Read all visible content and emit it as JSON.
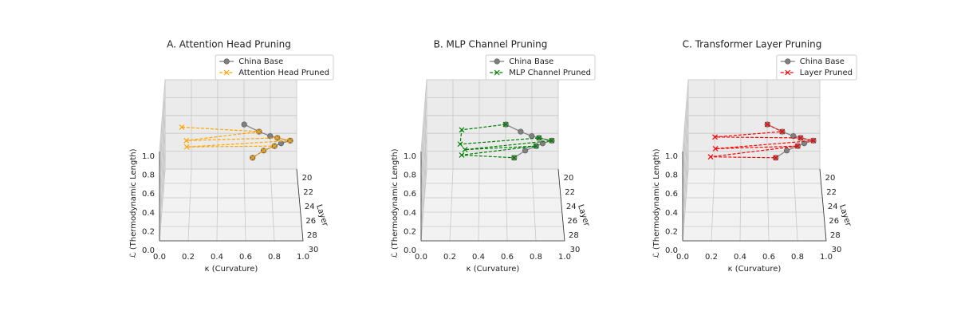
{
  "chart_data": [
    {
      "type": "line3d",
      "title": "A. Attention Head Pruning",
      "xlabel": "κ (Curvature)",
      "ylabel": "Layer",
      "zlabel": "ℒ (Thermodynamic Length)",
      "xlim": [
        0,
        1
      ],
      "ylim": [
        20,
        30
      ],
      "zlim": [
        0,
        1
      ],
      "xticks": [
        {
          "value": 0,
          "label": "0.0"
        },
        0.2,
        0.4,
        0.6,
        0.8,
        {
          "value": 1,
          "label": "1.0"
        }
      ],
      "yticks": [
        20,
        22,
        24,
        26,
        28,
        30
      ],
      "zticks": [
        {
          "value": 0,
          "label": "0.0"
        },
        0.2,
        0.4,
        0.6,
        0.8,
        {
          "value": 1,
          "label": "1.0"
        }
      ],
      "series": [
        {
          "name": "China Base",
          "color": "gray",
          "marker": "o",
          "linestyle": "solid",
          "x": [
            0.6,
            0.71,
            0.79,
            0.84,
            0.93,
            0.86,
            0.81,
            0.73,
            0.65
          ],
          "y": [
            21,
            22,
            23,
            24,
            25,
            26,
            27,
            28,
            29
          ],
          "z": [
            0.58,
            0.58,
            0.61,
            0.67,
            0.72,
            0.77,
            0.82,
            0.85,
            0.85
          ]
        },
        {
          "name": "Attention Head Pruned",
          "color": "orange",
          "marker": "x",
          "linestyle": "dashed",
          "x": [
            0.13,
            0.71,
            0.17,
            0.84,
            0.93,
            0.18,
            0.81,
            0.73,
            0.65
          ],
          "y": [
            21,
            22,
            23,
            24,
            25,
            26,
            27,
            28,
            29
          ],
          "z": [
            0.55,
            0.58,
            0.56,
            0.67,
            0.72,
            0.73,
            0.82,
            0.85,
            0.85
          ]
        }
      ]
    },
    {
      "type": "line3d",
      "title": "B. MLP Channel Pruning",
      "xlabel": "κ (Curvature)",
      "ylabel": "Layer",
      "zlabel": "ℒ (Thermodynamic Length)",
      "xlim": [
        0,
        1
      ],
      "ylim": [
        20,
        30
      ],
      "zlim": [
        0,
        1
      ],
      "xticks": [
        {
          "value": 0,
          "label": "0.0"
        },
        0.2,
        0.4,
        0.6,
        0.8,
        {
          "value": 1,
          "label": "1.0"
        }
      ],
      "yticks": [
        20,
        22,
        24,
        26,
        28,
        30
      ],
      "zticks": [
        {
          "value": 0,
          "label": "0.0"
        },
        0.2,
        0.4,
        0.6,
        0.8,
        {
          "value": 1,
          "label": "1.0"
        }
      ],
      "series": [
        {
          "name": "China Base",
          "color": "gray",
          "marker": "o",
          "linestyle": "solid",
          "x": [
            0.6,
            0.71,
            0.79,
            0.84,
            0.93,
            0.86,
            0.81,
            0.73,
            0.65
          ],
          "y": [
            21,
            22,
            23,
            24,
            25,
            26,
            27,
            28,
            29
          ],
          "z": [
            0.58,
            0.58,
            0.61,
            0.67,
            0.72,
            0.77,
            0.82,
            0.85,
            0.85
          ]
        },
        {
          "name": "MLP Channel Pruned",
          "color": "green",
          "marker": "x",
          "linestyle": "dashed",
          "x": [
            0.6,
            0.27,
            0.26,
            0.84,
            0.93,
            0.3,
            0.81,
            0.28,
            0.65
          ],
          "y": [
            21,
            22,
            23,
            24,
            25,
            26,
            27,
            28,
            29
          ],
          "z": [
            0.58,
            0.6,
            0.52,
            0.67,
            0.72,
            0.7,
            0.82,
            0.8,
            0.85
          ]
        }
      ]
    },
    {
      "type": "line3d",
      "title": "C. Transformer Layer Pruning",
      "xlabel": "κ (Curvature)",
      "ylabel": "Layer",
      "zlabel": "ℒ (Thermodynamic Length)",
      "xlim": [
        0,
        1
      ],
      "ylim": [
        20,
        30
      ],
      "zlim": [
        0,
        1
      ],
      "xticks": [
        {
          "value": 0,
          "label": "0.0"
        },
        0.2,
        0.4,
        0.6,
        0.8,
        {
          "value": 1,
          "label": "1.0"
        }
      ],
      "yticks": [
        20,
        22,
        24,
        26,
        28,
        30
      ],
      "zticks": [
        {
          "value": 0,
          "label": "0.0"
        },
        0.2,
        0.4,
        0.6,
        0.8,
        {
          "value": 1,
          "label": "1.0"
        }
      ],
      "series": [
        {
          "name": "China Base",
          "color": "gray",
          "marker": "o",
          "linestyle": "solid",
          "x": [
            0.6,
            0.71,
            0.79,
            0.84,
            0.93,
            0.86,
            0.81,
            0.73,
            0.65
          ],
          "y": [
            21,
            22,
            23,
            24,
            25,
            26,
            27,
            28,
            29
          ],
          "z": [
            0.58,
            0.58,
            0.61,
            0.67,
            0.72,
            0.77,
            0.82,
            0.85,
            0.85
          ]
        },
        {
          "name": "Layer Pruned",
          "color": "red",
          "marker": "x",
          "linestyle": "dashed",
          "x": [
            0.6,
            0.71,
            0.21,
            0.84,
            0.93,
            0.22,
            0.81,
            0.19,
            0.65
          ],
          "y": [
            21,
            22,
            23,
            24,
            25,
            26,
            27,
            28,
            29
          ],
          "z": [
            0.58,
            0.58,
            0.6,
            0.67,
            0.72,
            0.71,
            0.82,
            0.78,
            0.85
          ]
        }
      ]
    }
  ]
}
